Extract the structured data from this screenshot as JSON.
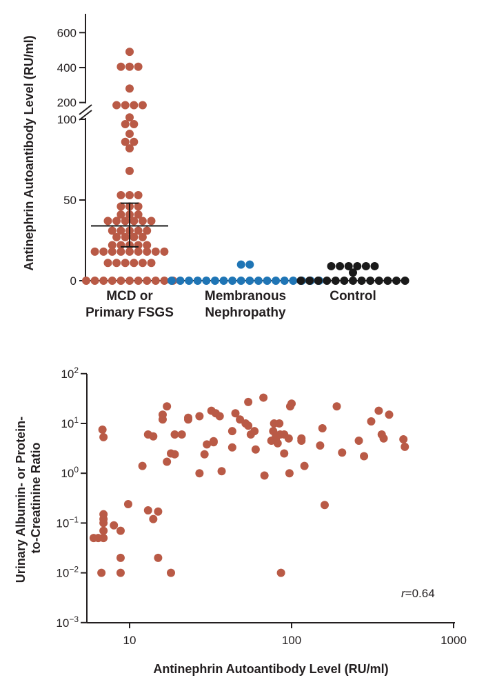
{
  "chart_data": [
    {
      "type": "scatter",
      "ylabel": "Antinephrin Autoantibody Level (RU/ml)",
      "y_axis_break": true,
      "y_lower_ticks": [
        "0",
        "50",
        "100"
      ],
      "y_upper_ticks": [
        "200",
        "400",
        "600"
      ],
      "categories": [
        "MCD or Primary FSGS",
        "Membranous Nephropathy",
        "Control"
      ],
      "category_lines": [
        [
          "MCD or",
          "Primary FSGS"
        ],
        [
          "Membranous",
          "Nephropathy"
        ],
        [
          "Control"
        ]
      ],
      "colors": {
        "MCD or Primary FSGS": "#b95a46",
        "Membranous Nephropathy": "#1f75b5",
        "Control": "#1a1a1a"
      },
      "median_iqr": {
        "median": 34,
        "q1": 21,
        "q3": 48
      },
      "series": [
        {
          "category": "MCD or Primary FSGS",
          "values": [
            490,
            405,
            370,
            375,
            280,
            185,
            160,
            150,
            150,
            115,
            95,
            97,
            91,
            86,
            85,
            82,
            68,
            53,
            52,
            50,
            46,
            46,
            45,
            41,
            40,
            40,
            37,
            37,
            37,
            36,
            35,
            35,
            31,
            30,
            30,
            29,
            29,
            27,
            26,
            25,
            24,
            22,
            22,
            19,
            19,
            19,
            18,
            18,
            17,
            17,
            16,
            16,
            15,
            15,
            15,
            11,
            10,
            10,
            10,
            10,
            10,
            0,
            0,
            0,
            0,
            0,
            0,
            0,
            0,
            0,
            0,
            0
          ]
        },
        {
          "category": "Membranous Nephropathy",
          "values": [
            10,
            7,
            0,
            0,
            0,
            0,
            0,
            0,
            0,
            0,
            0,
            0,
            0,
            0,
            0,
            0,
            0,
            0,
            0,
            0
          ]
        },
        {
          "category": "Control",
          "values": [
            9,
            8,
            6,
            6,
            6,
            6,
            5,
            0,
            0,
            0,
            0,
            0,
            0,
            0,
            0,
            0,
            0,
            0,
            0,
            0
          ]
        }
      ]
    },
    {
      "type": "scatter",
      "xlabel": "Antinephrin Autoantibody Level (RU/ml)",
      "ylabel_lines": [
        "Urinary Albumin- or Protein-",
        "to-Creatinine Ratio"
      ],
      "x_scale": "log",
      "y_scale": "log",
      "xlim": [
        5.7,
        1000
      ],
      "ylim": [
        0.001,
        100
      ],
      "x_ticks": [
        "10",
        "100",
        "1000"
      ],
      "y_ticks": [
        {
          "base": "10",
          "exp": "2"
        },
        {
          "base": "10",
          "exp": "1"
        },
        {
          "base": "10",
          "exp": "0"
        },
        {
          "base": "10",
          "exp": "−1"
        },
        {
          "base": "10",
          "exp": "−2"
        },
        {
          "base": "10",
          "exp": "−3"
        }
      ],
      "annotation": {
        "var": "r",
        "text": "=0.64"
      },
      "point_color": "#b95a46",
      "points": [
        [
          6,
          0.05
        ],
        [
          6.4,
          0.05
        ],
        [
          6.7,
          0.01
        ],
        [
          6.8,
          7.5
        ],
        [
          6.9,
          5.3
        ],
        [
          6.9,
          0.15
        ],
        [
          6.9,
          0.12
        ],
        [
          6.9,
          0.1
        ],
        [
          6.9,
          0.07
        ],
        [
          6.9,
          0.05
        ],
        [
          8,
          0.09
        ],
        [
          8.8,
          0.07
        ],
        [
          8.8,
          0.02
        ],
        [
          8.8,
          0.01
        ],
        [
          9.8,
          0.24
        ],
        [
          12,
          1.4
        ],
        [
          13,
          6
        ],
        [
          13,
          0.18
        ],
        [
          14,
          5.5
        ],
        [
          14,
          0.12
        ],
        [
          15,
          0.17
        ],
        [
          15,
          0.02
        ],
        [
          16,
          15
        ],
        [
          16,
          12
        ],
        [
          17,
          22
        ],
        [
          17,
          1.7
        ],
        [
          18,
          2.5
        ],
        [
          18,
          0.01
        ],
        [
          19,
          6
        ],
        [
          19,
          2.4
        ],
        [
          21,
          6
        ],
        [
          23,
          13
        ],
        [
          23,
          12
        ],
        [
          27,
          14
        ],
        [
          27,
          1
        ],
        [
          29,
          2.4
        ],
        [
          30,
          3.8
        ],
        [
          32,
          18
        ],
        [
          33,
          4.2
        ],
        [
          33,
          4.4
        ],
        [
          34,
          16
        ],
        [
          36,
          14
        ],
        [
          37,
          1.1
        ],
        [
          43,
          3.3
        ],
        [
          43,
          7
        ],
        [
          45,
          16
        ],
        [
          48,
          12
        ],
        [
          52,
          10
        ],
        [
          54,
          9
        ],
        [
          54,
          27
        ],
        [
          56,
          6
        ],
        [
          59,
          7
        ],
        [
          60,
          3
        ],
        [
          67,
          33
        ],
        [
          68,
          0.9
        ],
        [
          75,
          4.5
        ],
        [
          77,
          7
        ],
        [
          78,
          10
        ],
        [
          80,
          5
        ],
        [
          80,
          5.5
        ],
        [
          82,
          4
        ],
        [
          84,
          10
        ],
        [
          85,
          6
        ],
        [
          86,
          0.01
        ],
        [
          90,
          2.5
        ],
        [
          90,
          6
        ],
        [
          96,
          5
        ],
        [
          97,
          1
        ],
        [
          98,
          22
        ],
        [
          100,
          25
        ],
        [
          115,
          5
        ],
        [
          115,
          4.5
        ],
        [
          120,
          1.4
        ],
        [
          150,
          3.6
        ],
        [
          155,
          8
        ],
        [
          160,
          0.23
        ],
        [
          190,
          22
        ],
        [
          205,
          2.6
        ],
        [
          260,
          4.5
        ],
        [
          280,
          2.2
        ],
        [
          310,
          11
        ],
        [
          345,
          18
        ],
        [
          360,
          6
        ],
        [
          370,
          5
        ],
        [
          400,
          15
        ],
        [
          490,
          4.8
        ],
        [
          500,
          3.4
        ]
      ]
    }
  ]
}
